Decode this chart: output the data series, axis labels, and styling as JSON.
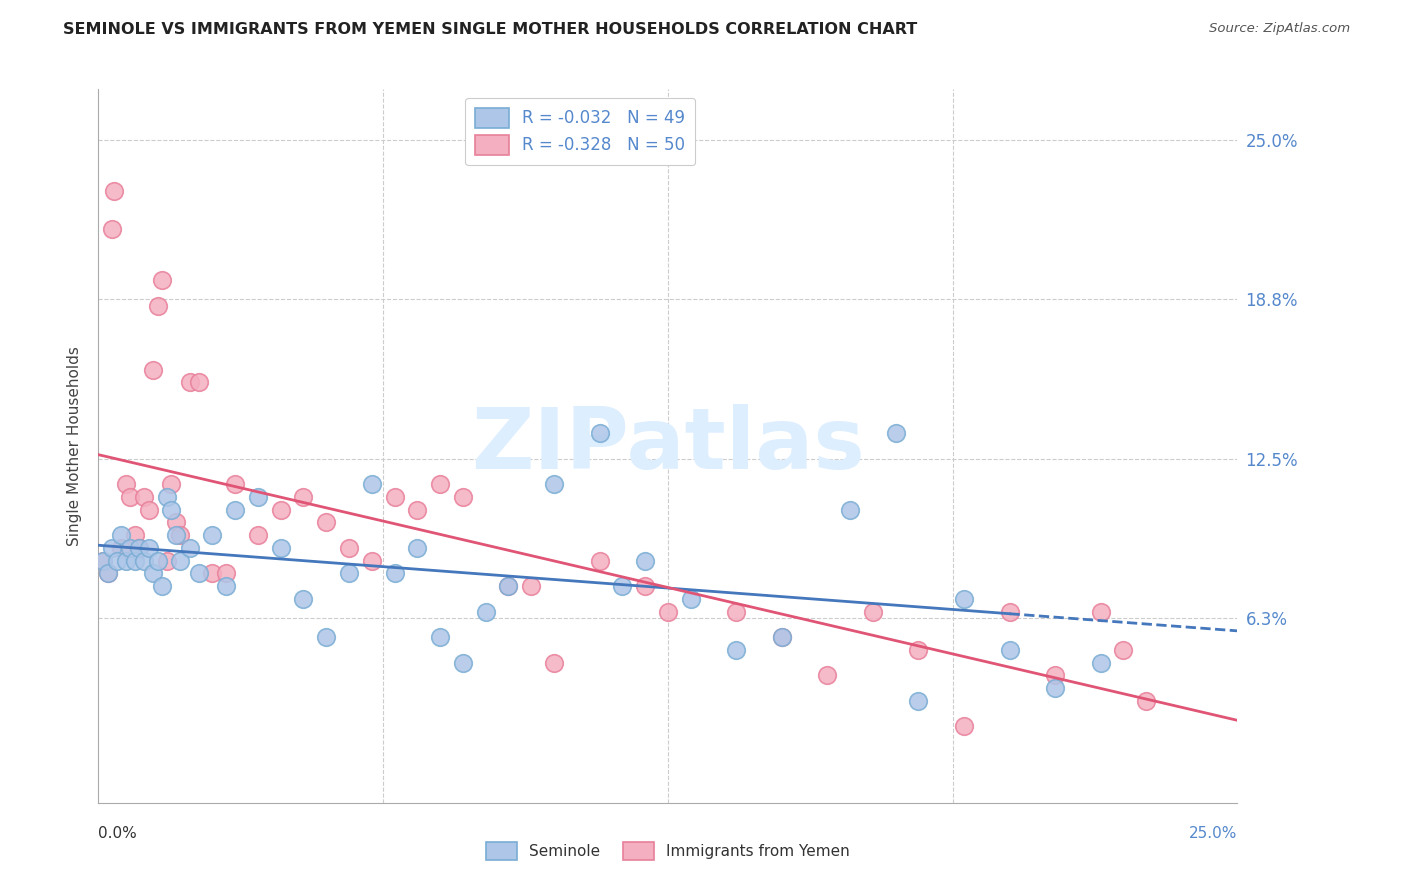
{
  "title": "SEMINOLE VS IMMIGRANTS FROM YEMEN SINGLE MOTHER HOUSEHOLDS CORRELATION CHART",
  "source": "Source: ZipAtlas.com",
  "ylabel": "Single Mother Households",
  "xlim": [
    0.0,
    25.0
  ],
  "ylim": [
    -1.0,
    27.0
  ],
  "ytick_values": [
    6.25,
    12.5,
    18.75,
    25.0
  ],
  "ytick_labels": [
    "6.3%",
    "12.5%",
    "18.8%",
    "25.0%"
  ],
  "grid_color": "#cccccc",
  "background_color": "#ffffff",
  "seminole_color": "#aec6e8",
  "yemen_color": "#f4afc0",
  "seminole_edge_color": "#7aadd4",
  "yemen_edge_color": "#e8809a",
  "trend_seminole_color": "#4477bb",
  "trend_yemen_color": "#e05575",
  "legend_seminole_label": "Seminole",
  "legend_yemen_label": "Immigrants from Yemen",
  "R_seminole": -0.032,
  "N_seminole": 49,
  "R_yemen": -0.328,
  "N_yemen": 50,
  "watermark": "ZIPatlas",
  "seminole_x": [
    0.1,
    0.2,
    0.3,
    0.4,
    0.5,
    0.6,
    0.7,
    0.8,
    0.9,
    1.0,
    1.1,
    1.2,
    1.3,
    1.4,
    1.5,
    1.6,
    1.7,
    1.8,
    2.0,
    2.2,
    2.5,
    2.8,
    3.0,
    3.5,
    4.0,
    4.5,
    5.0,
    5.5,
    6.0,
    6.5,
    7.0,
    7.5,
    8.0,
    8.5,
    9.0,
    10.0,
    11.0,
    11.5,
    12.0,
    13.0,
    14.0,
    15.0,
    16.5,
    17.5,
    18.0,
    19.0,
    20.0,
    21.0,
    22.0
  ],
  "seminole_y": [
    8.5,
    8.0,
    9.0,
    8.5,
    9.5,
    8.5,
    9.0,
    8.5,
    9.0,
    8.5,
    9.0,
    8.0,
    8.5,
    7.5,
    11.0,
    10.5,
    9.5,
    8.5,
    9.0,
    8.0,
    9.5,
    7.5,
    10.5,
    11.0,
    9.0,
    7.0,
    5.5,
    8.0,
    11.5,
    8.0,
    9.0,
    5.5,
    4.5,
    6.5,
    7.5,
    11.5,
    13.5,
    7.5,
    8.5,
    7.0,
    5.0,
    5.5,
    10.5,
    13.5,
    3.0,
    7.0,
    5.0,
    3.5,
    4.5
  ],
  "yemen_x": [
    0.1,
    0.2,
    0.3,
    0.35,
    0.5,
    0.6,
    0.7,
    0.8,
    0.9,
    1.0,
    1.1,
    1.2,
    1.3,
    1.4,
    1.5,
    1.6,
    1.7,
    1.8,
    2.0,
    2.2,
    2.5,
    2.8,
    3.0,
    3.5,
    4.0,
    4.5,
    5.0,
    5.5,
    6.0,
    6.5,
    7.0,
    7.5,
    8.0,
    9.0,
    9.5,
    10.0,
    11.0,
    12.0,
    12.5,
    14.0,
    15.0,
    16.0,
    17.0,
    18.0,
    19.0,
    20.0,
    21.0,
    22.0,
    22.5,
    23.0
  ],
  "yemen_y": [
    8.5,
    8.0,
    21.5,
    23.0,
    9.0,
    11.5,
    11.0,
    9.5,
    9.0,
    11.0,
    10.5,
    16.0,
    18.5,
    19.5,
    8.5,
    11.5,
    10.0,
    9.5,
    15.5,
    15.5,
    8.0,
    8.0,
    11.5,
    9.5,
    10.5,
    11.0,
    10.0,
    9.0,
    8.5,
    11.0,
    10.5,
    11.5,
    11.0,
    7.5,
    7.5,
    4.5,
    8.5,
    7.5,
    6.5,
    6.5,
    5.5,
    4.0,
    6.5,
    5.0,
    2.0,
    6.5,
    4.0,
    6.5,
    5.0,
    3.0
  ]
}
